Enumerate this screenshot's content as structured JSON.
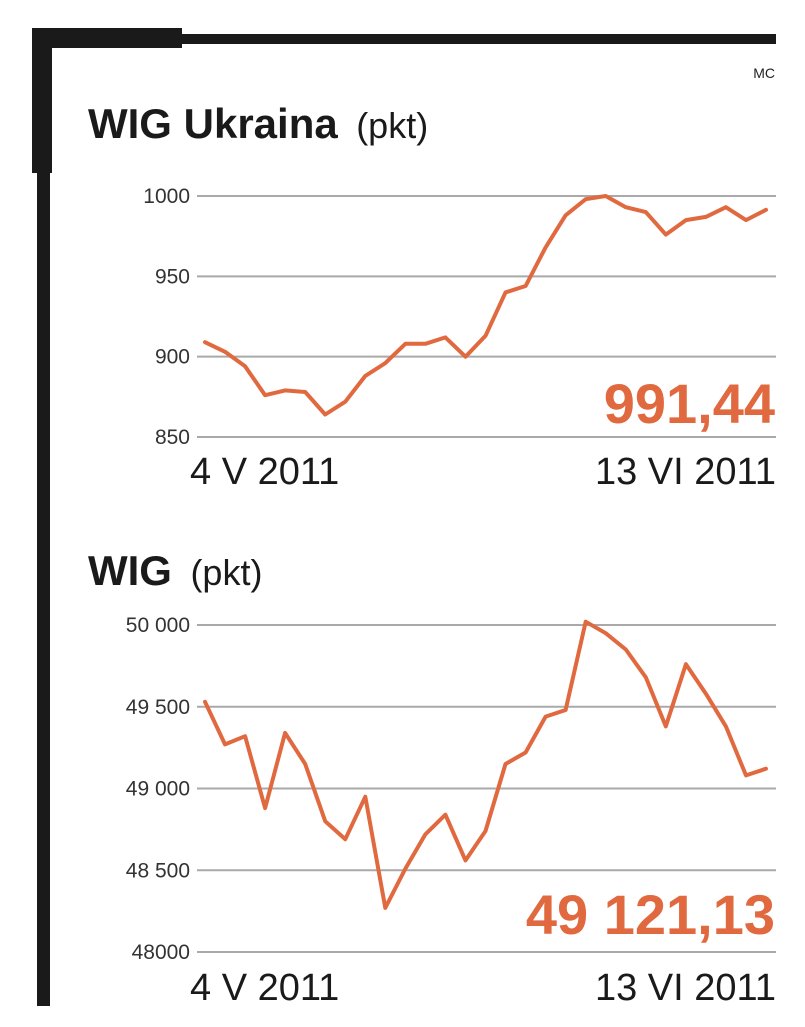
{
  "credit": "MC",
  "colors": {
    "line": "#e1693f",
    "frame": "#1a1a1a",
    "grid": "#a9a9a9"
  },
  "chart_data": [
    {
      "type": "line",
      "title": "WIG Ukraina",
      "unit": "(pkt)",
      "ylim": [
        850,
        1000
      ],
      "yticks": [
        1000,
        950,
        900,
        850
      ],
      "ytick_labels": [
        "1000",
        "950",
        "900",
        "850"
      ],
      "x_start_label": "4 V 2011",
      "x_end_label": "13 VI 2011",
      "last_value_label": "991,44",
      "grid": true,
      "series": [
        {
          "values": [
            909,
            903,
            894,
            876,
            879,
            878,
            864,
            872,
            888,
            896,
            908,
            908,
            912,
            900,
            913,
            940,
            944,
            968,
            988,
            998,
            1000,
            993,
            990,
            976,
            985,
            987,
            993,
            985,
            991.44
          ]
        }
      ]
    },
    {
      "type": "line",
      "title": "WIG",
      "unit": "(pkt)",
      "ylim": [
        48000,
        50000
      ],
      "yticks": [
        50000,
        49500,
        49000,
        48500,
        48000
      ],
      "ytick_labels": [
        "50 000",
        "49 500",
        "49 000",
        "48 500",
        "48000"
      ],
      "x_start_label": "4 V 2011",
      "x_end_label": "13 VI 2011",
      "last_value_label": "49 121,13",
      "grid": true,
      "series": [
        {
          "values": [
            49530,
            49270,
            49320,
            48880,
            49340,
            49150,
            48800,
            48690,
            48950,
            48270,
            48510,
            48720,
            48840,
            48560,
            48740,
            49150,
            49220,
            49440,
            49480,
            50020,
            49950,
            49850,
            49680,
            49380,
            49760,
            49580,
            49380,
            49080,
            49121.13
          ]
        }
      ]
    }
  ]
}
